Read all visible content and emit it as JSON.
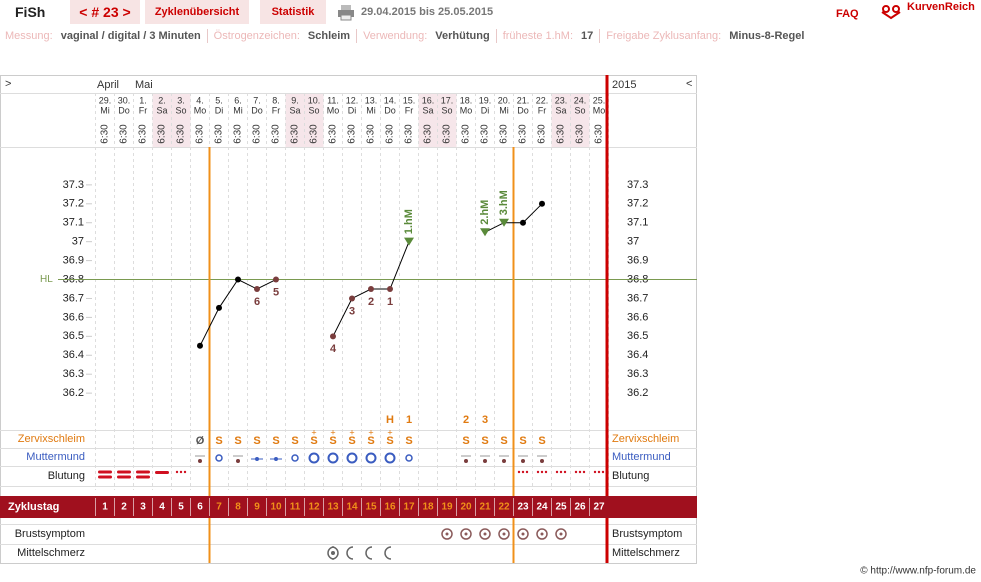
{
  "header": {
    "user": "FiSh",
    "cycle": "< # 23 >",
    "tabs": [
      "Zyklenübersicht",
      "Statistik"
    ],
    "date_range": "29.04.2015 bis 25.05.2015",
    "faq": "FAQ",
    "brand": "KurvenReich"
  },
  "settings": [
    {
      "label": "Messung:",
      "value": "vaginal / digital / 3 Minuten"
    },
    {
      "label": "Östrogenzeichen:",
      "value": "Schleim"
    },
    {
      "label": "Verwendung:",
      "value": "Verhütung"
    },
    {
      "label": "früheste 1.hM:",
      "value": "17"
    },
    {
      "label": "Freigabe Zyklusanfang:",
      "value": "Minus-8-Regel"
    }
  ],
  "chart_data": {
    "type": "line",
    "nav_prev": ">",
    "nav_next": "<",
    "year": "2015",
    "months": [
      "April",
      null,
      "Mai",
      null,
      null,
      null,
      null,
      null,
      null,
      null,
      null,
      null,
      null,
      null,
      null,
      null,
      null,
      null,
      null,
      null,
      null,
      null,
      null,
      null,
      null,
      null,
      null
    ],
    "categories": [
      "29.",
      "30.",
      "1.",
      "2.",
      "3.",
      "4.",
      "5.",
      "6.",
      "7.",
      "8.",
      "9.",
      "10.",
      "11.",
      "12.",
      "13.",
      "14.",
      "15.",
      "16.",
      "17.",
      "18.",
      "19.",
      "20.",
      "21.",
      "22.",
      "23.",
      "24.",
      "25."
    ],
    "weekdays": [
      "Mi",
      "Do",
      "Fr",
      "Sa",
      "So",
      "Mo",
      "Di",
      "Mi",
      "Do",
      "Fr",
      "Sa",
      "So",
      "Mo",
      "Di",
      "Mi",
      "Do",
      "Fr",
      "Sa",
      "So",
      "Mo",
      "Di",
      "Mi",
      "Do",
      "Fr",
      "Sa",
      "So",
      "Mo"
    ],
    "times": [
      "6:30",
      "6:30",
      "6:30",
      "6:30",
      "6:30",
      "6:30",
      "6:30",
      "6:30",
      "6:30",
      "6:30",
      "6:30",
      "6:30",
      "6:30",
      "6:30",
      "6:30",
      "6:30",
      "6:30",
      "6:30",
      "6:30",
      "6:30",
      "6:30",
      "6:30",
      "6:30",
      "6:30",
      "6:30",
      "6:30",
      "6:30"
    ],
    "values": [
      null,
      null,
      null,
      null,
      null,
      36.45,
      36.65,
      36.8,
      36.75,
      36.8,
      null,
      null,
      36.5,
      36.7,
      36.75,
      36.75,
      37.0,
      null,
      null,
      null,
      37.05,
      37.1,
      37.1,
      37.2,
      null,
      null,
      null
    ],
    "color": "#000000",
    "lower_labels": [
      null,
      null,
      null,
      null,
      null,
      null,
      null,
      null,
      "6",
      "5",
      null,
      null,
      "4",
      "3",
      "2",
      "1",
      null,
      null,
      null,
      null,
      null,
      null,
      null,
      null,
      null,
      null,
      null
    ],
    "lower_color": "#7a3d3d",
    "high_labels": [
      null,
      null,
      null,
      null,
      null,
      null,
      null,
      null,
      null,
      null,
      null,
      null,
      null,
      null,
      null,
      null,
      "1.hM",
      null,
      null,
      null,
      "2.hM",
      "3.hM",
      null,
      null,
      null,
      null,
      null
    ],
    "high_color": "#5a8a3a",
    "coverline": {
      "label": "HL",
      "value": 36.8,
      "color": "#7a9a50"
    },
    "ylim": [
      36.0,
      37.5
    ],
    "yticks": [
      36.2,
      36.3,
      36.4,
      36.5,
      36.6,
      36.7,
      36.8,
      36.9,
      37,
      37.1,
      37.2,
      37.3
    ],
    "grid": true,
    "peak": [
      null,
      null,
      null,
      null,
      null,
      null,
      null,
      null,
      null,
      null,
      null,
      null,
      null,
      null,
      null,
      "H",
      "1",
      null,
      null,
      "2",
      "3",
      null,
      null,
      null,
      null,
      null,
      null
    ],
    "cervix": [
      null,
      null,
      null,
      null,
      null,
      "Ø",
      "S",
      "S",
      "S",
      "S",
      "S",
      "S",
      "S",
      "S",
      "S",
      "S",
      "S",
      null,
      null,
      "S",
      "S",
      "S",
      "S",
      "S",
      null,
      null,
      null
    ],
    "cervix_plus": [
      null,
      null,
      null,
      null,
      null,
      null,
      null,
      null,
      null,
      null,
      null,
      "+",
      "+",
      "+",
      "+",
      "+",
      null,
      null,
      null,
      null,
      null,
      null,
      null,
      null,
      null,
      null,
      null
    ],
    "row_labels": {
      "cervix": "Zervixschleim",
      "cervix_os": "Muttermund",
      "bleeding": "Blutung",
      "breast": "Brustsymptom",
      "midpain": "Mittelschmerz"
    },
    "cycle_day_label": "Zyklustag",
    "cycle_days": [
      1,
      2,
      3,
      4,
      5,
      6,
      7,
      8,
      9,
      10,
      11,
      12,
      13,
      14,
      15,
      16,
      17,
      18,
      19,
      20,
      21,
      22,
      23,
      24,
      25,
      26,
      27
    ],
    "fertile_days": [
      7,
      22
    ],
    "fertile_color": "#f0901a"
  },
  "footer": "© http://www.nfp-forum.de"
}
